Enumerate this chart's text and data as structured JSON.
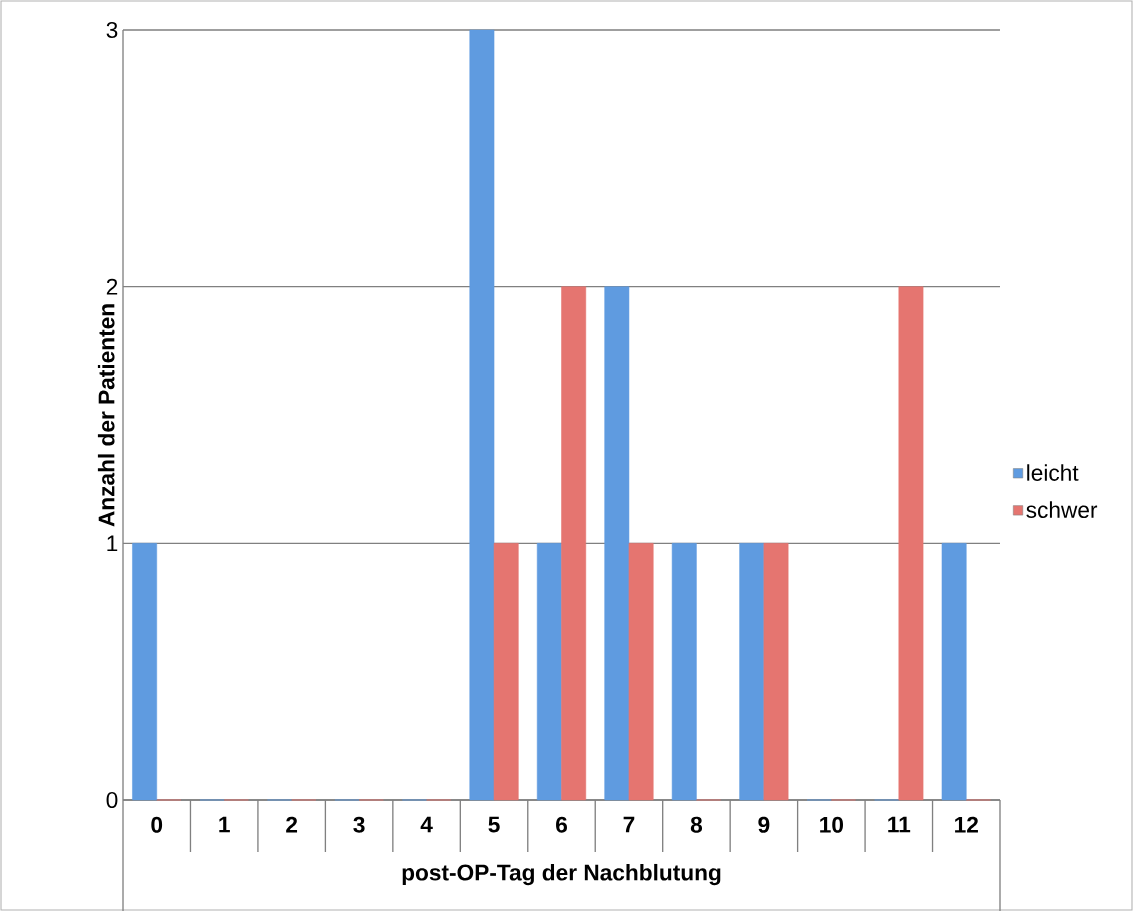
{
  "chart_data": {
    "type": "bar",
    "xlabel": "post-OP-Tag der Nachblutung",
    "ylabel": "Anzahl der Patienten",
    "categories": [
      "0",
      "1",
      "2",
      "3",
      "4",
      "5",
      "6",
      "7",
      "8",
      "9",
      "10",
      "11",
      "12"
    ],
    "series": [
      {
        "name": "leicht",
        "color": "#5f9be0",
        "values": [
          1,
          0,
          0,
          0,
          0,
          3,
          1,
          2,
          1,
          1,
          0,
          0,
          1
        ]
      },
      {
        "name": "schwer",
        "color": "#e57570",
        "values": [
          0,
          0,
          0,
          0,
          0,
          1,
          2,
          1,
          0,
          1,
          0,
          2,
          0
        ]
      }
    ],
    "ylim": [
      0,
      3
    ],
    "yticks": [
      0,
      1,
      2,
      3
    ],
    "grid": "y",
    "legend": "right"
  }
}
